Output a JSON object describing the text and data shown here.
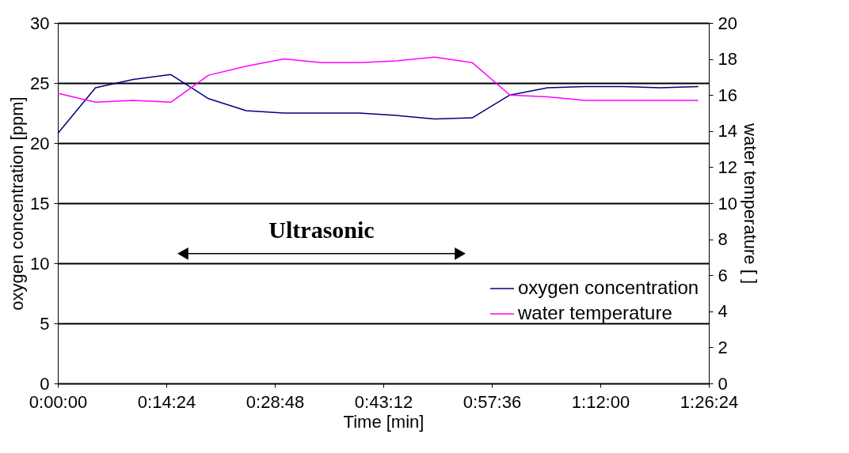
{
  "chart_data": {
    "type": "line",
    "xlabel": "Time [min]",
    "ylabel": "oxygen concentration [ppm]",
    "y2label": "water temperature [   ]",
    "x": [
      0,
      5,
      10,
      15,
      20,
      25,
      30,
      35,
      40,
      45,
      50,
      55,
      60,
      65,
      70,
      75,
      80,
      85
    ],
    "xlim": [
      0,
      86.4
    ],
    "xticks": [
      {
        "value": 0,
        "label": "0:00:00"
      },
      {
        "value": 14.4,
        "label": "0:14:24"
      },
      {
        "value": 28.8,
        "label": "0:28:48"
      },
      {
        "value": 43.2,
        "label": "0:43:12"
      },
      {
        "value": 57.6,
        "label": "0:57:36"
      },
      {
        "value": 72,
        "label": "1:12:00"
      },
      {
        "value": 86.4,
        "label": "1:26:24"
      }
    ],
    "ylim": [
      0,
      30
    ],
    "yticks": [
      0,
      5,
      10,
      15,
      20,
      25,
      30
    ],
    "y2lim": [
      0,
      20
    ],
    "y2ticks": [
      0,
      2,
      4,
      6,
      8,
      10,
      12,
      14,
      16,
      18,
      20
    ],
    "series": [
      {
        "name": "oxygen concentration",
        "color": "#000080",
        "values": [
          20.8,
          24.6,
          25.3,
          25.7,
          23.7,
          22.7,
          22.5,
          22.5,
          22.5,
          22.3,
          22.0,
          22.1,
          24.0,
          24.6,
          24.7,
          24.7,
          24.6,
          24.7
        ]
      },
      {
        "name": "water temperature",
        "color": "#ff00ff",
        "axis": "y2",
        "values": [
          16.1,
          15.6,
          15.7,
          15.6,
          17.1,
          17.6,
          18.0,
          17.8,
          17.8,
          17.9,
          18.1,
          17.8,
          16.0,
          15.9,
          15.7,
          15.7,
          15.7,
          15.7
        ]
      },
      {
        "type": "line",
        "color": "#000000",
        "marker": "triangle",
        "x": [
          16.6,
          53.4
        ],
        "values": [
          10.8,
          10.8
        ]
      }
    ],
    "annotations": [
      "Ultrasonic"
    ],
    "grid": "y",
    "legend": "bottom right",
    "marker": "none",
    "line_style": "solid"
  }
}
